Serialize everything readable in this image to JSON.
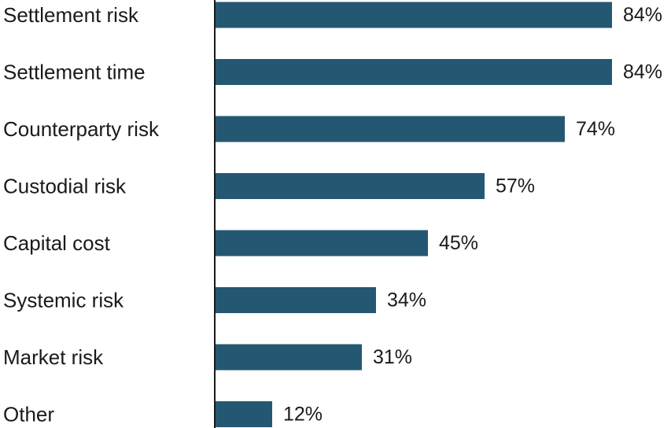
{
  "chart_data": {
    "type": "bar",
    "orientation": "horizontal",
    "categories": [
      "Settlement risk",
      "Settlement time",
      "Counterparty risk",
      "Custodial risk",
      "Capital cost",
      "Systemic risk",
      "Market risk",
      "Other"
    ],
    "values": [
      84,
      84,
      74,
      57,
      45,
      34,
      31,
      12
    ],
    "value_labels": [
      "84%",
      "84%",
      "74%",
      "57%",
      "45%",
      "34%",
      "31%",
      "12%"
    ],
    "unit": "%",
    "xlim": [
      0,
      100
    ],
    "grid": false,
    "legend": "none",
    "bar_color": "#245872",
    "axis_color": "#1a1a1a"
  }
}
